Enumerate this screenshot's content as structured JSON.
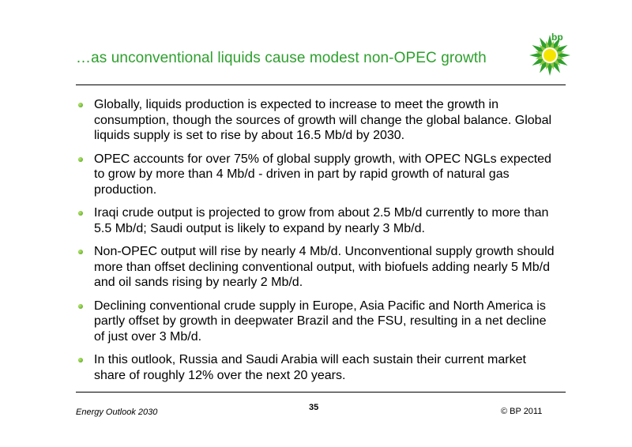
{
  "slide": {
    "title": "…as unconventional liquids cause modest non-OPEC growth",
    "logo_text": "bp",
    "bullets": [
      "Globally, liquids production is expected to increase to meet the growth in consumption, though the sources of growth will change the global balance. Global liquids supply is set to rise by about 16.5 Mb/d by 2030.",
      "OPEC accounts for over 75% of global supply growth, with OPEC NGLs expected to grow by more than 4 Mb/d - driven in part by rapid growth of natural gas production.",
      "Iraqi crude output is projected to grow from about 2.5 Mb/d currently to more than 5.5 Mb/d; Saudi output is likely to expand by nearly 3 Mb/d.",
      "Non-OPEC output will rise by nearly 4 Mb/d. Unconventional supply growth should more than offset declining conventional output, with biofuels adding nearly 5 Mb/d and oil sands rising by nearly 2 Mb/d.",
      "Declining conventional crude supply in Europe, Asia Pacific and North America is partly offset by growth in deepwater Brazil and the FSU, resulting in a net decline of just over 3 Mb/d.",
      "In this outlook, Russia and Saudi Arabia will each sustain their current market share of roughly 12% over the next 20 years."
    ]
  },
  "footer": {
    "left": "Energy Outlook 2030",
    "page": "35",
    "right": "© BP 2011"
  },
  "colors": {
    "title": "#2ea02e",
    "logo_green": "#2ea02e",
    "logo_yellow": "#f5e400"
  }
}
